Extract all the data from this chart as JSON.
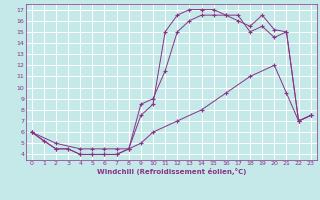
{
  "xlabel": "Windchill (Refroidissement éolien,°C)",
  "bg_color": "#c5e8e8",
  "grid_color": "#ffffff",
  "line_color": "#883388",
  "line1": {
    "x": [
      0,
      1,
      2,
      3,
      4,
      5,
      6,
      7,
      8,
      9,
      10,
      11,
      12,
      13,
      14,
      15,
      16,
      17,
      18,
      19,
      20,
      21,
      22,
      23
    ],
    "y": [
      6.0,
      5.2,
      4.5,
      4.5,
      4.0,
      4.0,
      4.0,
      4.0,
      4.5,
      8.5,
      9.0,
      11.5,
      15.0,
      16.0,
      16.5,
      16.5,
      16.5,
      16.0,
      15.5,
      16.5,
      15.2,
      15.0,
      7.0,
      7.5
    ]
  },
  "line2": {
    "x": [
      0,
      2,
      3,
      4,
      5,
      6,
      7,
      8,
      9,
      10,
      11,
      12,
      13,
      14,
      15,
      16,
      17,
      18,
      19,
      20,
      21,
      22,
      23
    ],
    "y": [
      6.0,
      4.5,
      4.5,
      4.0,
      4.0,
      4.0,
      4.0,
      4.5,
      7.5,
      8.5,
      15.0,
      16.5,
      17.0,
      17.0,
      17.0,
      16.5,
      16.5,
      15.0,
      15.5,
      14.5,
      15.0,
      7.0,
      7.5
    ]
  },
  "line3": {
    "x": [
      0,
      2,
      4,
      5,
      6,
      7,
      8,
      9,
      10,
      12,
      14,
      16,
      18,
      20,
      21,
      22,
      23
    ],
    "y": [
      6.0,
      5.0,
      4.5,
      4.5,
      4.5,
      4.5,
      4.5,
      5.0,
      6.0,
      7.0,
      8.0,
      9.5,
      11.0,
      12.0,
      9.5,
      7.0,
      7.5
    ]
  },
  "ylim": [
    3.5,
    17.5
  ],
  "xlim": [
    -0.5,
    23.5
  ],
  "yticks": [
    4,
    5,
    6,
    7,
    8,
    9,
    10,
    11,
    12,
    13,
    14,
    15,
    16,
    17
  ],
  "xticks": [
    0,
    1,
    2,
    3,
    4,
    5,
    6,
    7,
    8,
    9,
    10,
    11,
    12,
    13,
    14,
    15,
    16,
    17,
    18,
    19,
    20,
    21,
    22,
    23
  ]
}
